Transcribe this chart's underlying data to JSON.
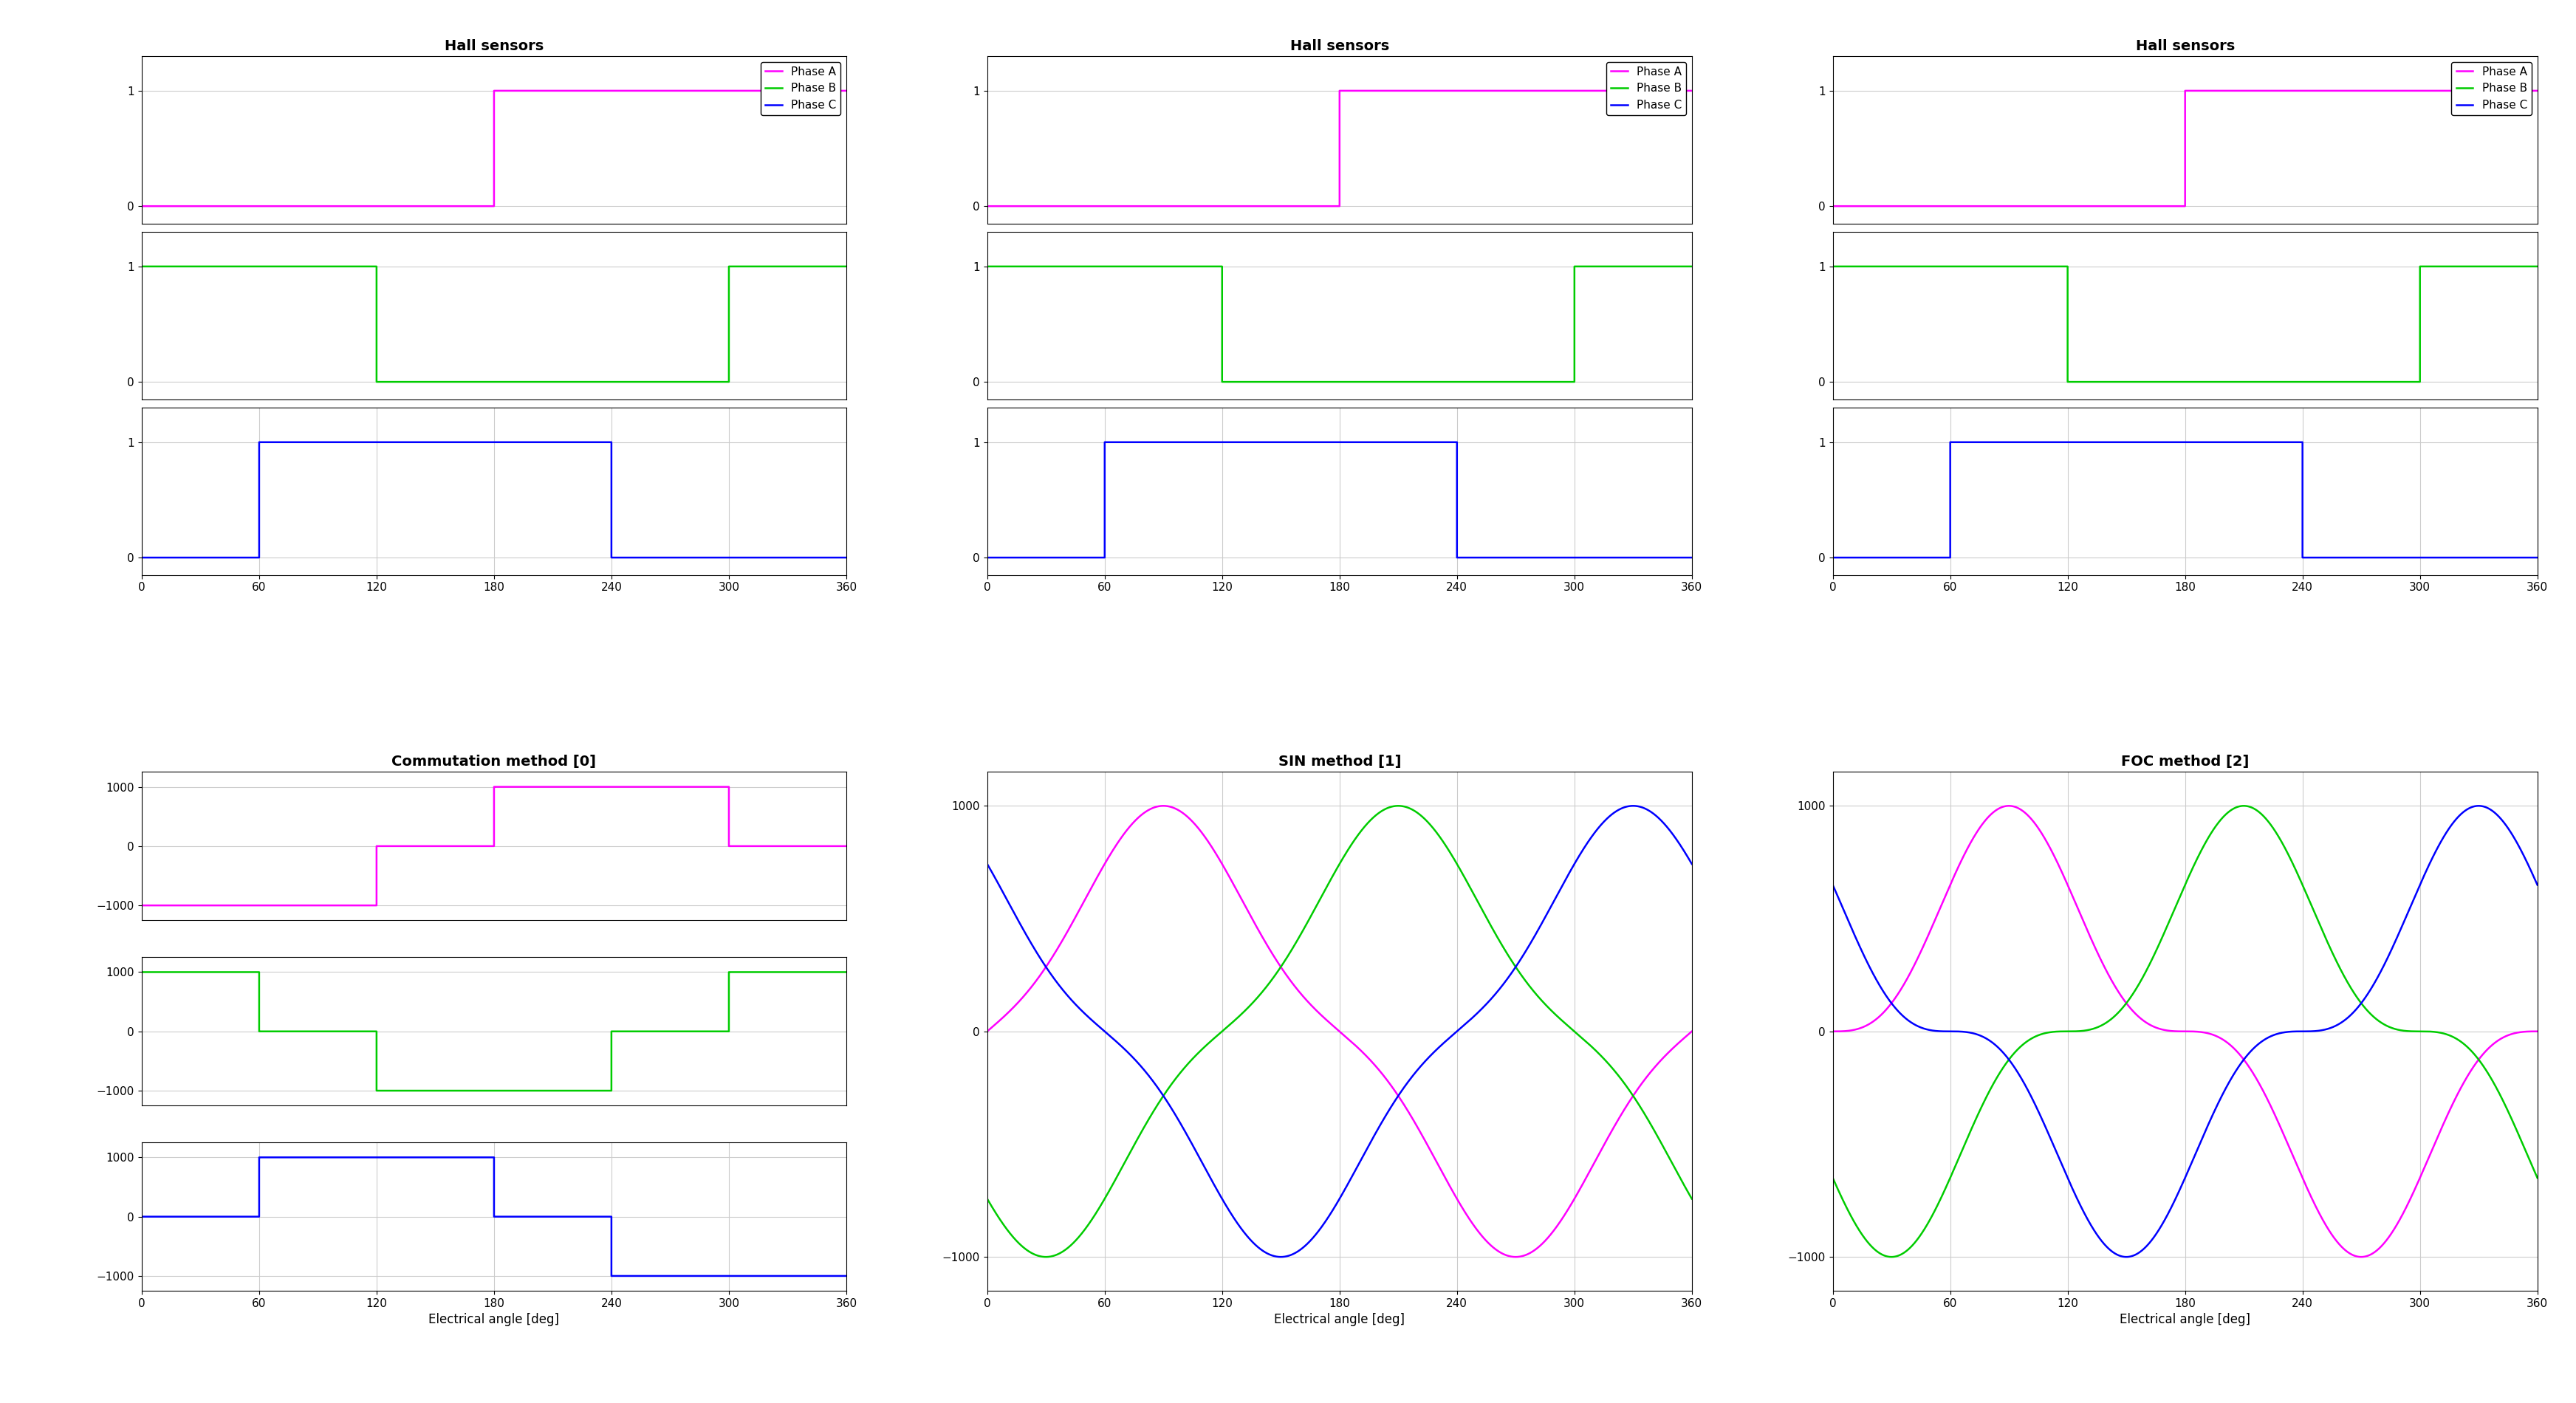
{
  "title_hall": "Hall sensors",
  "title_commutation": "Commutation method [0]",
  "title_sin": "SIN method [1]",
  "title_foc": "FOC method [2]",
  "xlabel": "Electrical angle [deg]",
  "legend_labels": [
    "Phase A",
    "Phase B",
    "Phase C"
  ],
  "colors": [
    "#FF00FF",
    "#00CC00",
    "#0000FF"
  ],
  "xlim": [
    0,
    360
  ],
  "xticks": [
    0,
    60,
    120,
    180,
    240,
    300,
    360
  ],
  "hall_ylim": [
    -0.15,
    1.3
  ],
  "hall_yticks": [
    0,
    1
  ],
  "motor_ylim": [
    -1150,
    1150
  ],
  "motor_yticks": [
    -1000,
    0,
    1000
  ],
  "comm_yticks_A": [
    -1000,
    0,
    1000
  ],
  "comm_ylim": [
    -1250,
    1250
  ],
  "background_color": "#FFFFFF",
  "grid_color": "#CCCCCC",
  "linewidth": 1.8,
  "title_fontsize": 14,
  "tick_fontsize": 11,
  "label_fontsize": 12,
  "legend_fontsize": 11
}
